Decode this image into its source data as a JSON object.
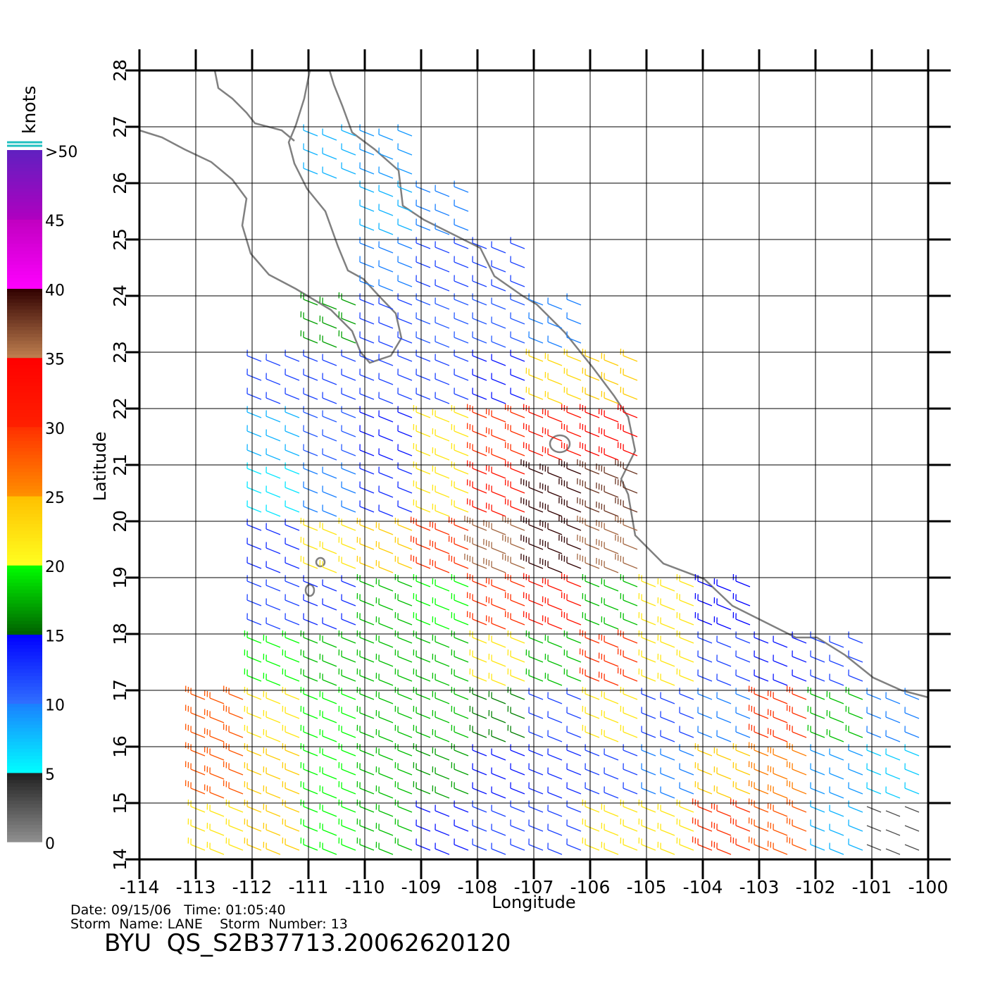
{
  "map": {
    "title": "BYU  QS_S2B37713.20062620120",
    "date_line": "Date: 09/15/06   Time: 01:05:40",
    "storm_line": "Storm  Name: LANE    Storm  Number: 13",
    "xlabel": "Longitude",
    "ylabel": "Latitude",
    "xlim": [
      -114,
      -100
    ],
    "ylim": [
      14,
      28
    ],
    "xticks": [
      -114,
      -113,
      -112,
      -111,
      -110,
      -109,
      -108,
      -107,
      -106,
      -105,
      -104,
      -103,
      -102,
      -101,
      -100
    ],
    "yticks": [
      14,
      15,
      16,
      17,
      18,
      19,
      20,
      21,
      22,
      23,
      24,
      25,
      26,
      27,
      28
    ],
    "grid": true,
    "colorbar": {
      "title": "knots",
      "lim": [
        0,
        50
      ],
      "ticks": [
        0,
        5,
        10,
        15,
        20,
        25,
        30,
        35,
        40,
        45,
        {
          "value": 50,
          "label": ">50"
        }
      ],
      "segments": [
        {
          "range": [
            0,
            5
          ],
          "colors": [
            "#909090",
            "#202020"
          ]
        },
        {
          "range": [
            5,
            10
          ],
          "colors": [
            "#00ffff",
            "#1a80ff"
          ]
        },
        {
          "range": [
            10,
            15
          ],
          "colors": [
            "#3070ff",
            "#0000ff"
          ]
        },
        {
          "range": [
            15,
            20
          ],
          "colors": [
            "#006000",
            "#00ff00"
          ]
        },
        {
          "range": [
            20,
            25
          ],
          "colors": [
            "#ffff20",
            "#ffc000"
          ]
        },
        {
          "range": [
            25,
            30
          ],
          "colors": [
            "#ff9000",
            "#ff3000"
          ]
        },
        {
          "range": [
            30,
            35
          ],
          "colors": [
            "#ff2000",
            "#ff0000"
          ]
        },
        {
          "range": [
            35,
            40
          ],
          "colors": [
            "#c08050",
            "#300000"
          ]
        },
        {
          "range": [
            40,
            45
          ],
          "colors": [
            "#ff00ff",
            "#c000c0"
          ]
        },
        {
          "range": [
            45,
            50
          ],
          "colors": [
            "#b000c0",
            "#6020c0"
          ]
        }
      ]
    },
    "wind": {
      "lon": [
        -110.5,
        -109.5,
        -109.5,
        -108.5,
        -109.5,
        -108.5,
        -107.5,
        -110.5,
        -109.5,
        -108.5,
        -107.5,
        -106.5,
        -111.5,
        -110.5,
        -109.5,
        -108.5,
        -107.5,
        -106.5,
        -105.5,
        -111.5,
        -110.5,
        -109.5,
        -108.5,
        -107.5,
        -106.5,
        -105.5,
        -111.5,
        -110.5,
        -109.5,
        -108.5,
        -107.5,
        -106.5,
        -105.5,
        -111.5,
        -110.5,
        -109.5,
        -108.5,
        -107.5,
        -106.5,
        -105.5,
        -111.5,
        -110.5,
        -109.5,
        -108.5,
        -107.5,
        -106.5,
        -105.5,
        -104.5,
        -103.5,
        -111.5,
        -110.5,
        -109.5,
        -108.5,
        -107.5,
        -106.5,
        -105.5,
        -104.5,
        -103.5,
        -102.5,
        -101.5,
        -112.5,
        -111.5,
        -110.5,
        -109.5,
        -108.5,
        -107.5,
        -106.5,
        -105.5,
        -104.5,
        -103.5,
        -102.5,
        -101.5,
        -100.5,
        -112.5,
        -111.5,
        -110.5,
        -109.5,
        -108.5,
        -107.5,
        -106.5,
        -105.5,
        -104.5,
        -103.5,
        -102.5,
        -101.5,
        -100.5,
        -112.5,
        -111.5,
        -110.5,
        -109.5,
        -108.5,
        -107.5,
        -106.5,
        -105.5,
        -104.5,
        -103.5,
        -102.5,
        -101.5,
        -100.5
      ],
      "lat": [
        26.5,
        26.5,
        25.5,
        25.5,
        24.5,
        24.5,
        24.5,
        23.5,
        23.5,
        23.5,
        23.5,
        23.5,
        22.5,
        22.5,
        22.5,
        22.5,
        22.5,
        22.5,
        22.5,
        21.5,
        21.5,
        21.5,
        21.5,
        21.5,
        21.5,
        21.5,
        20.5,
        20.5,
        20.5,
        20.5,
        20.5,
        20.5,
        20.5,
        19.5,
        19.5,
        19.5,
        19.5,
        19.5,
        19.5,
        19.5,
        18.5,
        18.5,
        18.5,
        18.5,
        18.5,
        18.5,
        18.5,
        18.5,
        18.5,
        17.5,
        17.5,
        17.5,
        17.5,
        17.5,
        17.5,
        17.5,
        17.5,
        17.5,
        17.5,
        17.5,
        16.5,
        16.5,
        16.5,
        16.5,
        16.5,
        16.5,
        16.5,
        16.5,
        16.5,
        16.5,
        16.5,
        16.5,
        16.5,
        15.5,
        15.5,
        15.5,
        15.5,
        15.5,
        15.5,
        15.5,
        15.5,
        15.5,
        15.5,
        15.5,
        15.5,
        15.5,
        14.5,
        14.5,
        14.5,
        14.5,
        14.5,
        14.5,
        14.5,
        14.5,
        14.5,
        14.5,
        14.5,
        14.5,
        14.5
      ],
      "speed": [
        8,
        9,
        8,
        10,
        10,
        12,
        12,
        17,
        12,
        11,
        11,
        10,
        12,
        12,
        12,
        12,
        14,
        23,
        24,
        8,
        11,
        14,
        22,
        30,
        32,
        34,
        6,
        10,
        13,
        22,
        32,
        40,
        38,
        13,
        22,
        24,
        30,
        36,
        40,
        36,
        12,
        13,
        18,
        20,
        30,
        32,
        18,
        22,
        15,
        20,
        18,
        18,
        18,
        22,
        18,
        30,
        22,
        12,
        14,
        12,
        28,
        22,
        20,
        18,
        18,
        16,
        12,
        22,
        12,
        10,
        30,
        18,
        10,
        28,
        24,
        20,
        18,
        17,
        14,
        13,
        12,
        10,
        24,
        26,
        9,
        7,
        22,
        24,
        20,
        18,
        14,
        12,
        12,
        22,
        22,
        30,
        28,
        8,
        3
      ]
    }
  }
}
